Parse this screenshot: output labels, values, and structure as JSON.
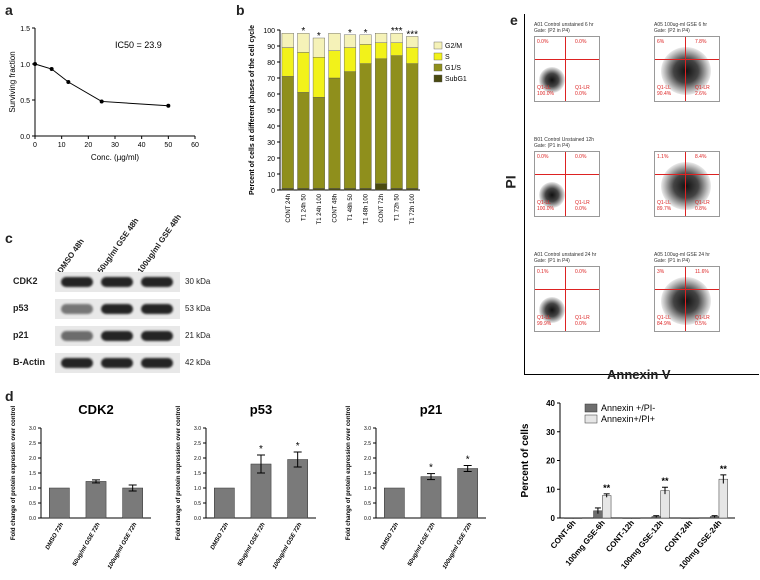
{
  "labels": {
    "a": "a",
    "b": "b",
    "c": "c",
    "d": "d",
    "e": "e"
  },
  "chart_data": [
    {
      "id": "a",
      "type": "line",
      "title": "",
      "annotation": "IC50 = 23.9",
      "xlabel": "Conc. (µg/ml)",
      "ylabel": "Surviving fraction",
      "x": [
        0,
        6.25,
        12.5,
        25,
        50
      ],
      "y": [
        1.0,
        0.93,
        0.75,
        0.48,
        0.42
      ],
      "xlim": [
        0,
        60
      ],
      "ylim": [
        0,
        1.5
      ],
      "xticks": [
        0,
        10,
        20,
        30,
        40,
        50,
        60
      ],
      "yticks": [
        0.0,
        0.5,
        1.0,
        1.5
      ]
    },
    {
      "id": "b",
      "type": "bar",
      "stacked": true,
      "ylabel": "Percent of cells at different phases of the cell cycle",
      "ylim": [
        0,
        100
      ],
      "yticks": [
        0,
        10,
        20,
        30,
        40,
        50,
        60,
        70,
        80,
        90,
        100
      ],
      "categories": [
        "CONT 24h",
        "T1 24h 50",
        "T1 24h 100",
        "CONT 48h",
        "T1 48h 50",
        "T1 48h 100",
        "CONT 72h",
        "T1 72h 50",
        "T1 72h 100"
      ],
      "series": [
        {
          "name": "SubG1",
          "color": "#4a4a10",
          "values": [
            1,
            1,
            1,
            1,
            1,
            1,
            4,
            1,
            1
          ]
        },
        {
          "name": "G1/S",
          "color": "#8f8f1c",
          "values": [
            70,
            60,
            57,
            69,
            73,
            78,
            78,
            83,
            78
          ]
        },
        {
          "name": "S",
          "color": "#f2f21a",
          "values": [
            18,
            25,
            25,
            17,
            15,
            12,
            10,
            8,
            10
          ]
        },
        {
          "name": "G2/M",
          "color": "#f5f2b8",
          "values": [
            9,
            12,
            12,
            11,
            8,
            6,
            6,
            6,
            7
          ]
        }
      ],
      "significance": [
        "",
        "*",
        "*",
        "",
        "*",
        "*",
        "",
        "***",
        "***"
      ]
    },
    {
      "id": "d1",
      "type": "bar",
      "title": "CDK2",
      "ylabel": "Fold change of protein expression over control",
      "categories": [
        "DMSO 72h",
        "50ug/ml GSE 72h",
        "100ug/ml GSE 72h"
      ],
      "values": [
        1.0,
        1.22,
        1.0
      ],
      "errors": [
        0,
        0.05,
        0.1
      ],
      "significance": [
        "",
        "",
        ""
      ],
      "ylim": [
        0,
        3.0
      ],
      "yticks": [
        0.0,
        0.5,
        1.0,
        1.5,
        2.0,
        2.5,
        3.0
      ]
    },
    {
      "id": "d2",
      "type": "bar",
      "title": "p53",
      "ylabel": "Fold change of protein expression over control",
      "categories": [
        "DMSO 72h",
        "50ug/ml GSE 72h",
        "100ug/ml GSE 72h"
      ],
      "values": [
        1.0,
        1.8,
        1.95
      ],
      "errors": [
        0,
        0.3,
        0.25
      ],
      "significance": [
        "",
        "*",
        "*"
      ],
      "ylim": [
        0,
        3.0
      ],
      "yticks": [
        0.0,
        0.5,
        1.0,
        1.5,
        2.0,
        2.5,
        3.0
      ]
    },
    {
      "id": "d3",
      "type": "bar",
      "title": "p21",
      "ylabel": "Fold change of protein expression over control",
      "categories": [
        "DMSO 72h",
        "50ug/ml GSE 72h",
        "100ug/ml GSE 72h"
      ],
      "values": [
        1.0,
        1.38,
        1.65
      ],
      "errors": [
        0,
        0.1,
        0.1
      ],
      "significance": [
        "",
        "*",
        "*"
      ],
      "ylim": [
        0,
        3.0
      ],
      "yticks": [
        0.0,
        0.5,
        1.0,
        1.5,
        2.0,
        2.5,
        3.0
      ]
    },
    {
      "id": "e2",
      "type": "bar",
      "ylabel": "Percent of cells",
      "ylim": [
        0,
        40
      ],
      "yticks": [
        0,
        10,
        20,
        30,
        40
      ],
      "categories": [
        "CONT-6h",
        "100mg GSE-6h",
        "CONT-12h",
        "100mg GSE-12h",
        "CONT-24h",
        "100mg GSE-24h"
      ],
      "series": [
        {
          "name": "Annexin +/PI-",
          "color": "#6e6e6e",
          "values": [
            0,
            2.5,
            0,
            0.5,
            0,
            0.5
          ],
          "errors": [
            0,
            1,
            0,
            0.3,
            0,
            0.3
          ]
        },
        {
          "name": "Annexin+/PI+",
          "color": "#e6e6e6",
          "values": [
            0,
            7.8,
            0,
            9.5,
            0,
            13.5
          ],
          "errors": [
            0,
            0.6,
            0,
            1.2,
            0,
            1.5
          ]
        }
      ],
      "significance": [
        "",
        "**",
        "",
        "**",
        "",
        "**"
      ]
    }
  ],
  "blot": {
    "columns": [
      "DMSO 48h",
      "50ug/ml GSE 48h",
      "100ug/ml GSE 48h"
    ],
    "rows": [
      {
        "name": "CDK2",
        "kda": "30 kDa"
      },
      {
        "name": "p53",
        "kda": "53 kDa"
      },
      {
        "name": "p21",
        "kda": "21 kDa"
      },
      {
        "name": "B-Actin",
        "kda": "42 kDa"
      }
    ]
  },
  "flow": {
    "axis_y": "PI",
    "axis_x": "Annexin V",
    "plots": [
      {
        "title": "A01 Control unstained 6 hr",
        "gate": "Gate: (P2 in P4)",
        "ul": "0.0%",
        "ur": "0.0%",
        "ll": "Q1-LL",
        "lr": "Q1-LR",
        "llv": "100.0%",
        "lrv": "0.0%"
      },
      {
        "title": "A05 100ug-ml GSE 6 hr",
        "gate": "Gate: (P2 in P4)",
        "ul": "6%",
        "ur": "7.8%",
        "ll": "Q1-LL",
        "lr": "Q1-LR",
        "llv": "90.4%",
        "lrv": "2.6%"
      },
      {
        "title": "B01 Control Unstained 12h",
        "gate": "Gate: (P1 in P4)",
        "ul": "0.0%",
        "ur": "0.0%",
        "ll": "Q1-LL",
        "lr": "Q1-LR",
        "llv": "100.0%",
        "lrv": "0.0%"
      },
      {
        "title": "",
        "gate": "",
        "ul": "1.1%",
        "ur": "8.4%",
        "ll": "Q1-LL",
        "lr": "Q1-LR",
        "llv": "89.7%",
        "lrv": "0.8%"
      },
      {
        "title": "A01 Control unstained 24 hr",
        "gate": "Gate: (P1 in P4)",
        "ul": "0.1%",
        "ur": "0.0%",
        "ll": "Q1-LL",
        "lr": "Q1-LR",
        "llv": "99.9%",
        "lrv": "0.0%"
      },
      {
        "title": "A05 100ug-ml GSE 24 hr",
        "gate": "Gate: (P1 in P4)",
        "ul": "3%",
        "ur": "11.6%",
        "ll": "Q1-LL",
        "lr": "Q1-LR",
        "llv": "84.9%",
        "lrv": "0.5%"
      }
    ]
  }
}
